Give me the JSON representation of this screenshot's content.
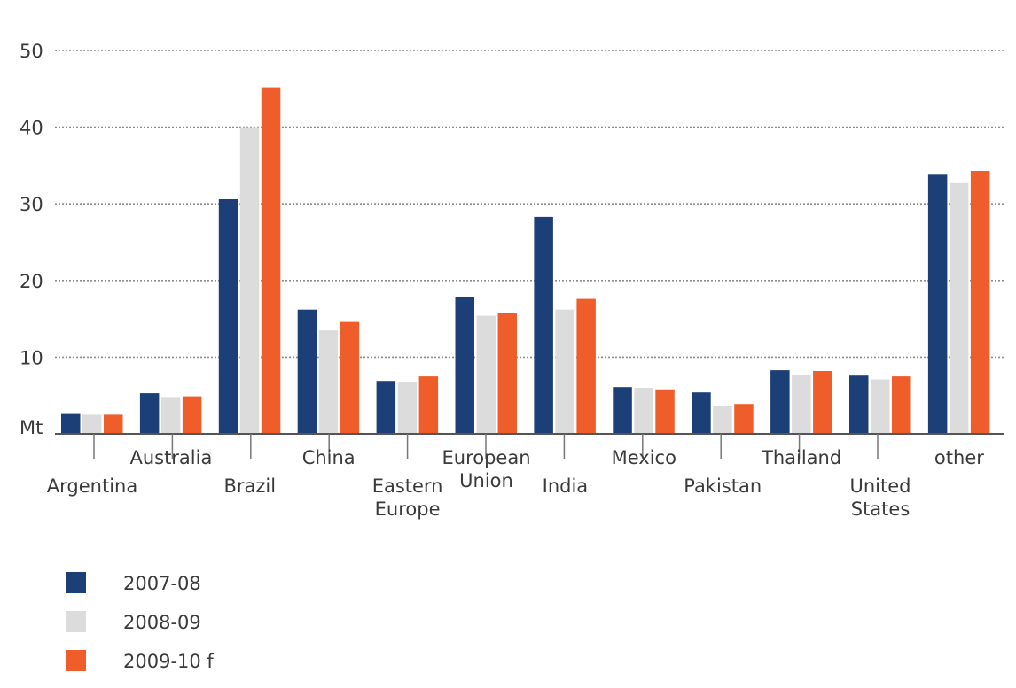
{
  "chart_data": {
    "type": "bar",
    "ylabel": "Mt",
    "ylim": [
      0,
      50
    ],
    "yticks": [
      10,
      20,
      30,
      40,
      50
    ],
    "grid": true,
    "legend_position": "bottom-left",
    "categories": [
      "Argentina",
      "Australia",
      "Brazil",
      "China",
      "Eastern Europe",
      "European Union",
      "India",
      "Mexico",
      "Pakistan",
      "Thailand",
      "United States",
      "other"
    ],
    "category_label_lines": [
      [
        "Argentina"
      ],
      [
        "Australia"
      ],
      [
        "Brazil"
      ],
      [
        "China"
      ],
      [
        "Eastern",
        "Europe"
      ],
      [
        "European",
        "Union"
      ],
      [
        "India"
      ],
      [
        "Mexico"
      ],
      [
        "Pakistan"
      ],
      [
        "Thailand"
      ],
      [
        "United",
        "States"
      ],
      [
        "other"
      ]
    ],
    "series": [
      {
        "name": "2007-08",
        "color": "#1b3f76",
        "values": [
          2.7,
          5.3,
          30.6,
          16.2,
          6.9,
          17.9,
          28.3,
          6.1,
          5.4,
          8.3,
          7.6,
          33.8
        ]
      },
      {
        "name": "2008-09",
        "color": "#dcdcdc",
        "values": [
          2.5,
          4.8,
          40.0,
          13.5,
          6.8,
          15.4,
          16.2,
          6.0,
          3.7,
          7.7,
          7.1,
          32.7
        ]
      },
      {
        "name": "2009-10 f",
        "color": "#ef5e2a",
        "values": [
          2.5,
          4.9,
          45.2,
          14.6,
          7.5,
          15.7,
          17.6,
          5.8,
          3.9,
          8.2,
          7.5,
          34.3
        ]
      }
    ]
  }
}
